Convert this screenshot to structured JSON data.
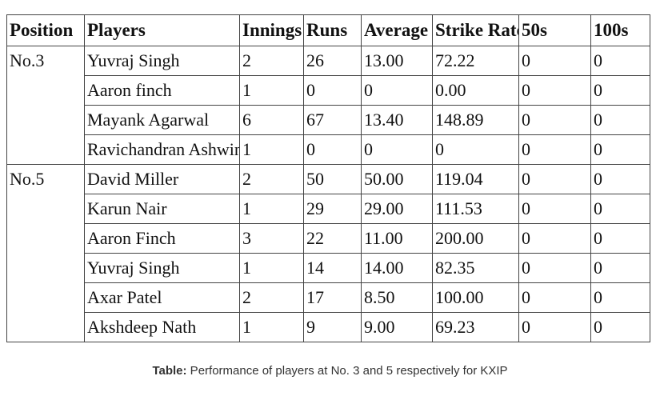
{
  "table": {
    "headers": [
      "Position",
      "Players",
      "Innings",
      "Runs",
      "Average",
      "Strike Rate",
      "50s",
      "100s"
    ],
    "groups": [
      {
        "position": "No.3",
        "rows": [
          {
            "player": "Yuvraj Singh",
            "innings": "2",
            "runs": "26",
            "average": "13.00",
            "strike_rate": "72.22",
            "fifties": "0",
            "hundreds": "0"
          },
          {
            "player": "Aaron finch",
            "innings": "1",
            "runs": "0",
            "average": "0",
            "strike_rate": "0.00",
            "fifties": "0",
            "hundreds": "0"
          },
          {
            "player": "Mayank Agarwal",
            "innings": "6",
            "runs": "67",
            "average": "13.40",
            "strike_rate": "148.89",
            "fifties": "0",
            "hundreds": "0"
          },
          {
            "player": "Ravichandran Ashwin",
            "innings": "1",
            "runs": "0",
            "average": "0",
            "strike_rate": "0",
            "fifties": "0",
            "hundreds": "0"
          }
        ]
      },
      {
        "position": "No.5",
        "rows": [
          {
            "player": "David Miller",
            "innings": "2",
            "runs": "50",
            "average": "50.00",
            "strike_rate": "119.04",
            "fifties": "0",
            "hundreds": "0"
          },
          {
            "player": "Karun Nair",
            "innings": "1",
            "runs": "29",
            "average": "29.00",
            "strike_rate": "111.53",
            "fifties": "0",
            "hundreds": "0"
          },
          {
            "player": "Aaron Finch",
            "innings": "3",
            "runs": "22",
            "average": "11.00",
            "strike_rate": "200.00",
            "fifties": "0",
            "hundreds": "0"
          },
          {
            "player": "Yuvraj Singh",
            "innings": "1",
            "runs": "14",
            "average": "14.00",
            "strike_rate": "82.35",
            "fifties": "0",
            "hundreds": "0"
          },
          {
            "player": "Axar Patel",
            "innings": "2",
            "runs": "17",
            "average": "8.50",
            "strike_rate": "100.00",
            "fifties": "0",
            "hundreds": "0"
          },
          {
            "player": "Akshdeep Nath",
            "innings": "1",
            "runs": "9",
            "average": "9.00",
            "strike_rate": "69.23",
            "fifties": "0",
            "hundreds": "0"
          }
        ]
      }
    ]
  },
  "caption": {
    "label": "Table:",
    "text": " Performance of players at No. 3 and 5 respectively for KXIP"
  }
}
